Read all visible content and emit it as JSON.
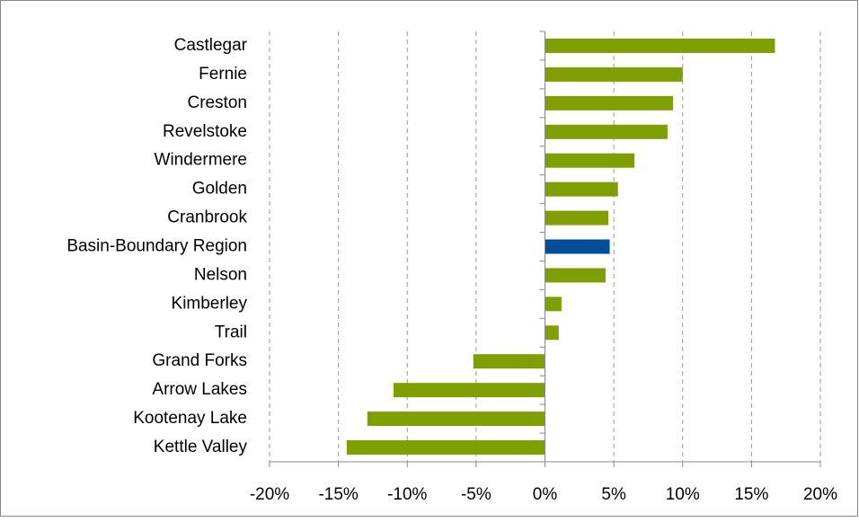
{
  "chart_data": {
    "type": "hbar",
    "categories": [
      "Castlegar",
      "Fernie",
      "Creston",
      "Revelstoke",
      "Windermere",
      "Golden",
      "Cranbrook",
      "Basin-Boundary Region",
      "Nelson",
      "Kimberley",
      "Trail",
      "Grand Forks",
      "Arrow Lakes",
      "Kootenay Lake",
      "Kettle Valley"
    ],
    "values": [
      16.7,
      10.0,
      9.3,
      8.9,
      6.5,
      5.3,
      4.6,
      4.7,
      4.4,
      1.2,
      1.0,
      -5.2,
      -11.0,
      -12.9,
      -14.4
    ],
    "colors": [
      "#7f9f00",
      "#7f9f00",
      "#7f9f00",
      "#7f9f00",
      "#7f9f00",
      "#7f9f00",
      "#7f9f00",
      "#004e98",
      "#7f9f00",
      "#7f9f00",
      "#7f9f00",
      "#7f9f00",
      "#7f9f00",
      "#7f9f00",
      "#7f9f00"
    ],
    "xlim": [
      -20,
      20
    ],
    "xticks": [
      {
        "value": -20,
        "label": "-20%"
      },
      {
        "value": -15,
        "label": "-15%"
      },
      {
        "value": -10,
        "label": "-10%"
      },
      {
        "value": -5,
        "label": "-5%"
      },
      {
        "value": 0,
        "label": "0%"
      },
      {
        "value": 5,
        "label": "5%"
      },
      {
        "value": 10,
        "label": "10%"
      },
      {
        "value": 15,
        "label": "15%"
      },
      {
        "value": 20,
        "label": "20%"
      }
    ],
    "grid": true
  }
}
